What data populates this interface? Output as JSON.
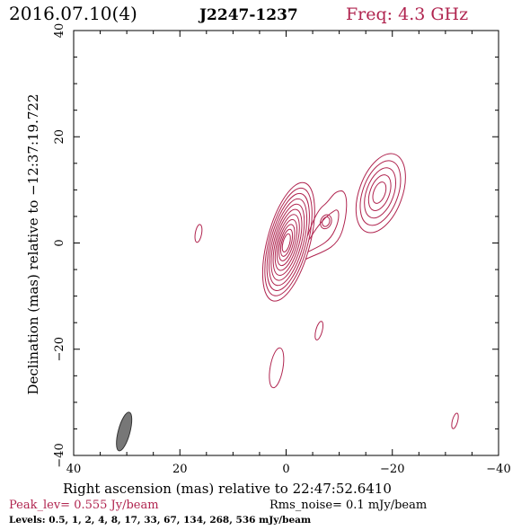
{
  "header": {
    "date": "2016.07.10(4)",
    "source": "J2247-1237",
    "freq": "Freq: 4.3 GHz"
  },
  "footer": {
    "peak": "Peak_lev=  0.555 Jy/beam",
    "rms": "Rms_noise=  0.1 mJy/beam",
    "levels": "Levels: 0.5,   1,   2,   4,   8,  17,  33,  67, 134, 268, 536 mJy/beam"
  },
  "colors": {
    "contour": "#b0244f",
    "beam": "#777777",
    "axis": "#000000"
  },
  "chart_data": {
    "type": "contour",
    "title": "",
    "xlabel": "Right ascension (mas) relative to 22:47:52.6410",
    "ylabel": "Declination (mas) relative to −12:37:19.722",
    "xlim": [
      40,
      -40
    ],
    "ylim": [
      -40,
      40
    ],
    "xticks": [
      40,
      20,
      0,
      -20,
      -40
    ],
    "yticks": [
      -40,
      -20,
      0,
      20,
      40
    ],
    "xtick_labels": [
      "40",
      "20",
      "0",
      "−20",
      "−40"
    ],
    "ytick_labels": [
      "−40",
      "−20",
      "0",
      "20",
      "40"
    ],
    "levels_mJy_per_beam": [
      0.5,
      1,
      2,
      4,
      8,
      17,
      33,
      67,
      134,
      268,
      536
    ],
    "peak_Jy_per_beam": 0.555,
    "rms_noise_mJy_per_beam": 0.1,
    "core": {
      "x": 0,
      "y": 0,
      "pa_deg": 15,
      "nlevels": 11
    },
    "components": [
      {
        "x": -17.5,
        "y": 9.5,
        "nlevels": 5
      },
      {
        "x": -7.5,
        "y": 4,
        "nlevels": 2
      }
    ],
    "beam": {
      "x": 30.5,
      "y": -35.5,
      "major_mas": 7.5,
      "minor_mas": 2.2,
      "pa_deg": 15
    }
  }
}
